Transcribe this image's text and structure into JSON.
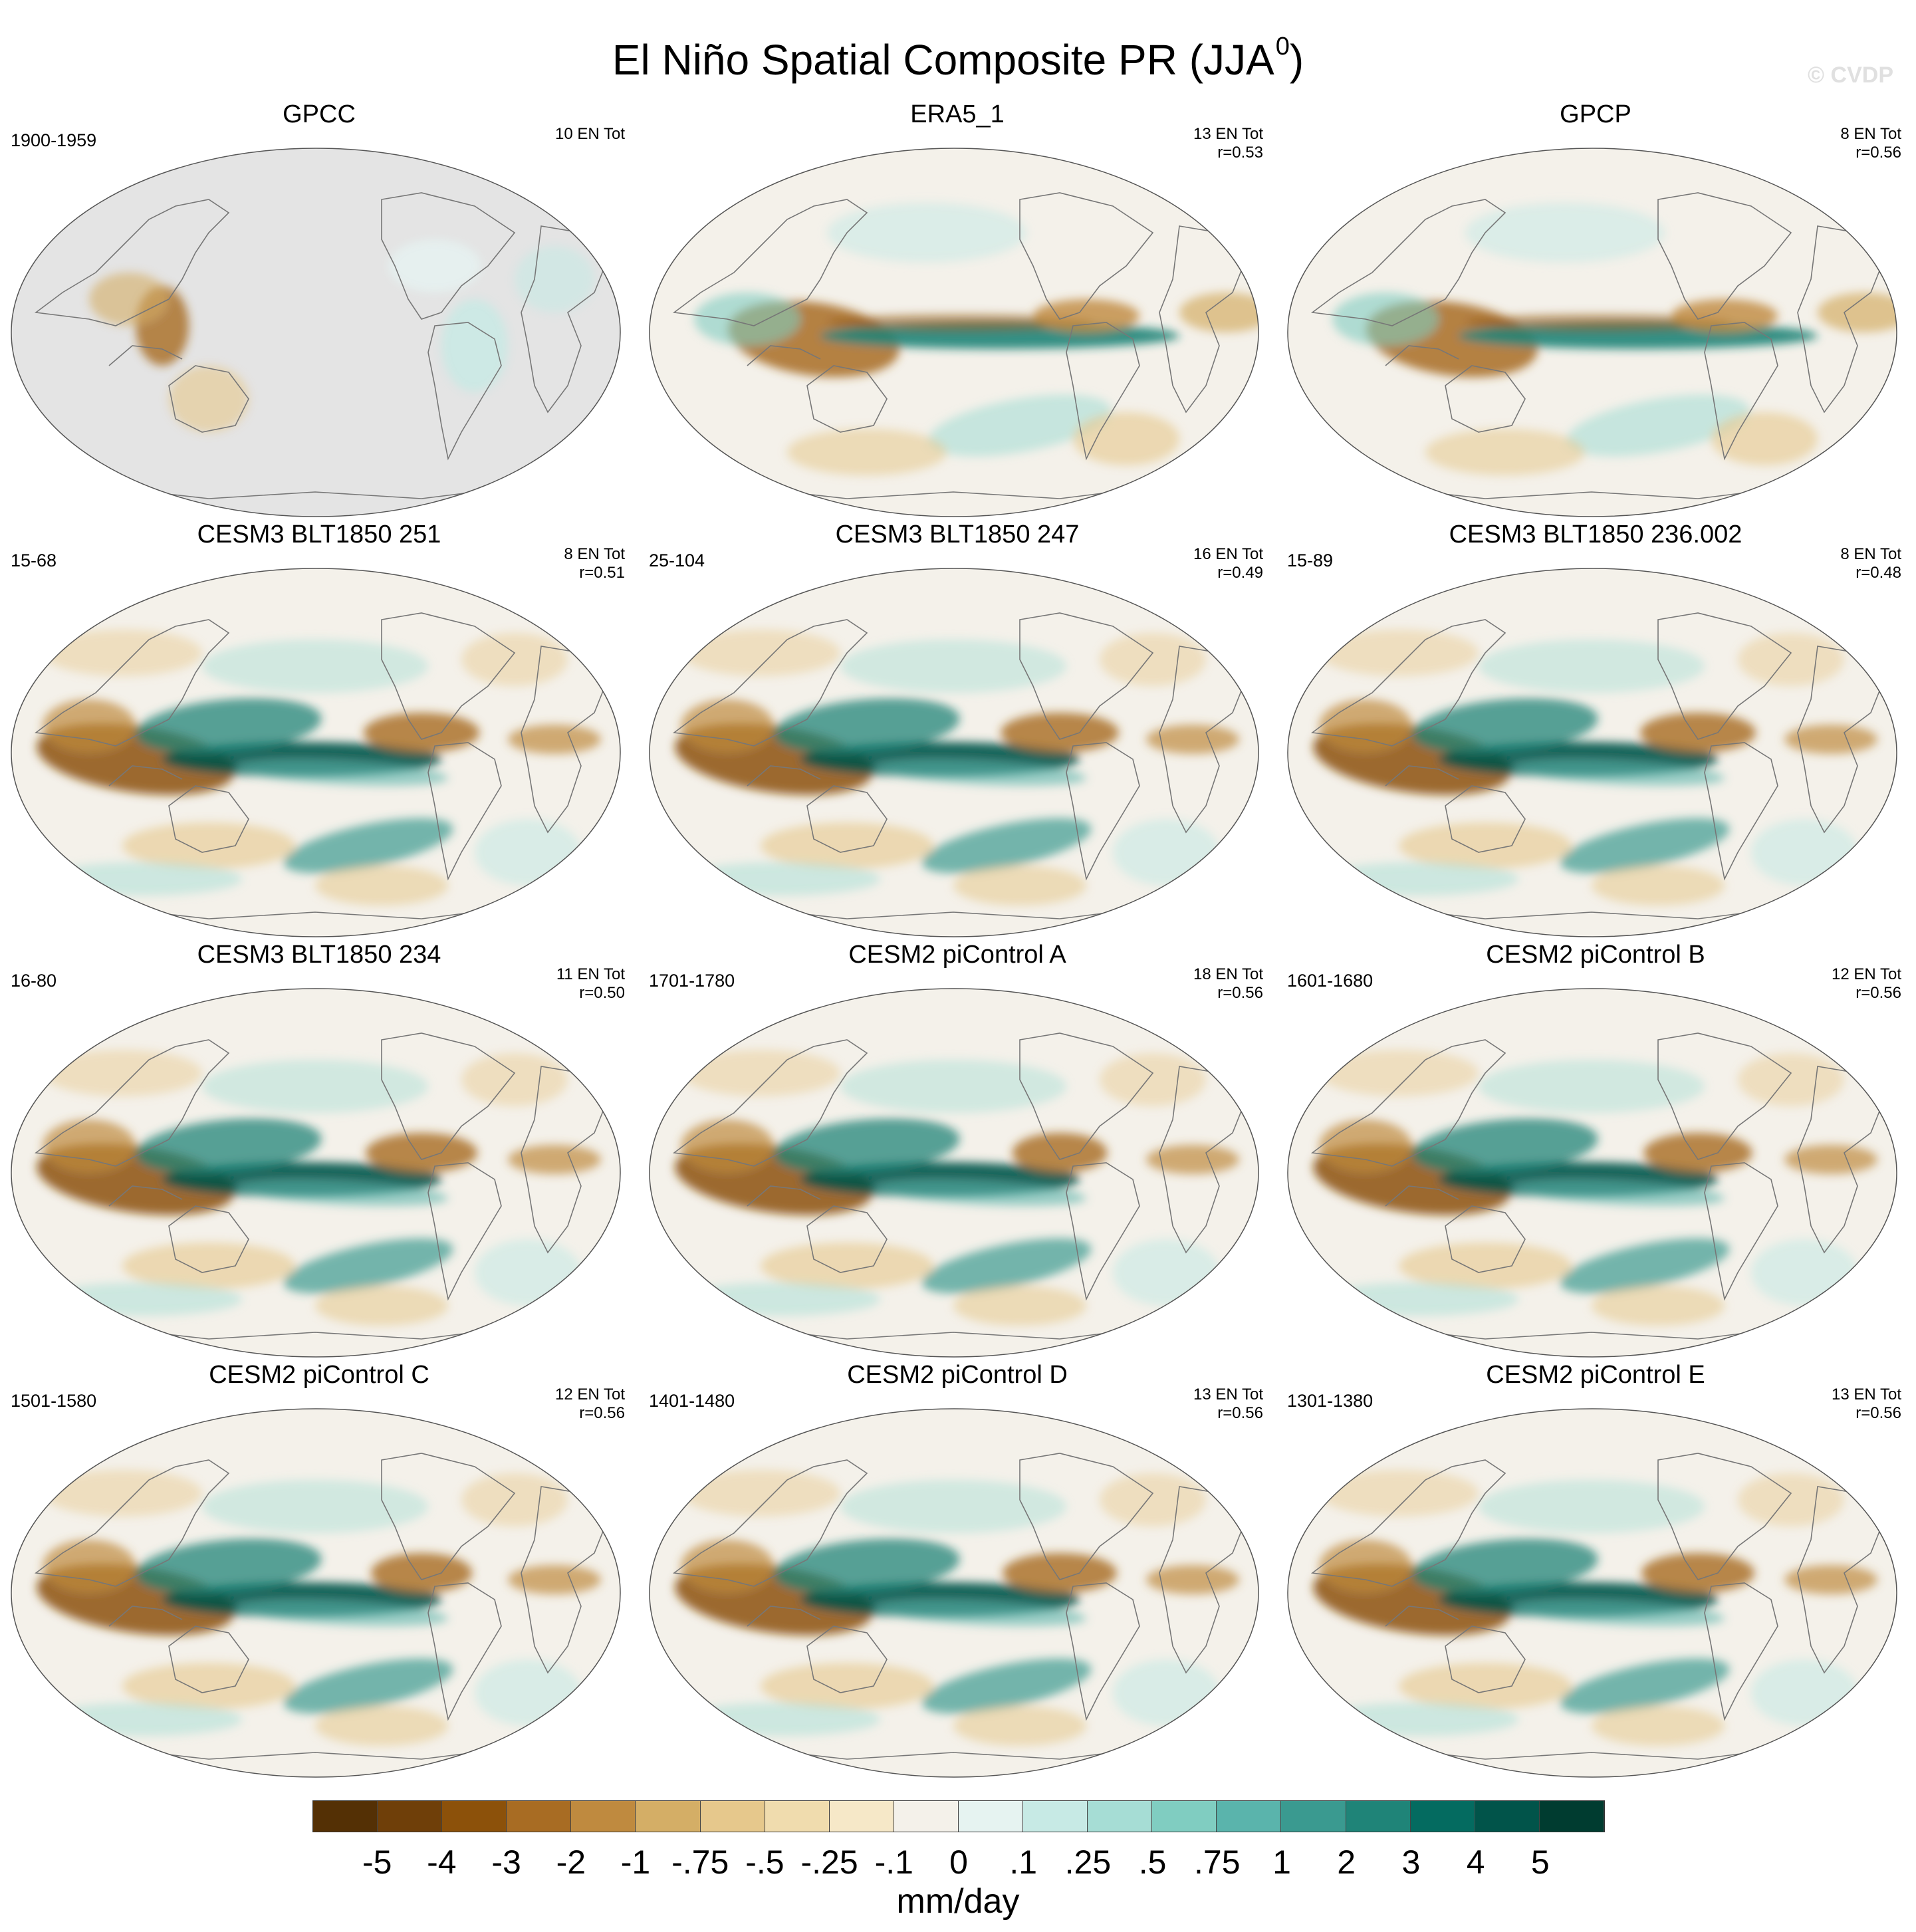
{
  "title": "El Niño Spatial Composite PR (JJA",
  "title_sup": "0",
  "title_close": ")",
  "watermark": "© CVDP",
  "panels": [
    {
      "title": "GPCC",
      "years": "1900-1959",
      "count": "10 EN Tot",
      "r": "",
      "style": "gpcc"
    },
    {
      "title": "ERA5_1",
      "years": "",
      "count": "13 EN Tot",
      "r": "r=0.53",
      "style": "obs"
    },
    {
      "title": "GPCP",
      "years": "",
      "count": "8 EN Tot",
      "r": "r=0.56",
      "style": "obs"
    },
    {
      "title": "CESM3 BLT1850 251",
      "years": "15-68",
      "count": "8 EN Tot",
      "r": "r=0.51",
      "style": "model"
    },
    {
      "title": "CESM3 BLT1850 247",
      "years": "25-104",
      "count": "16 EN Tot",
      "r": "r=0.49",
      "style": "model"
    },
    {
      "title": "CESM3 BLT1850 236.002",
      "years": "15-89",
      "count": "8 EN Tot",
      "r": "r=0.48",
      "style": "model"
    },
    {
      "title": "CESM3 BLT1850 234",
      "years": "16-80",
      "count": "11 EN Tot",
      "r": "r=0.50",
      "style": "model"
    },
    {
      "title": "CESM2 piControl A",
      "years": "1701-1780",
      "count": "18 EN Tot",
      "r": "r=0.56",
      "style": "model"
    },
    {
      "title": "CESM2 piControl B",
      "years": "1601-1680",
      "count": "12 EN Tot",
      "r": "r=0.56",
      "style": "model"
    },
    {
      "title": "CESM2 piControl C",
      "years": "1501-1580",
      "count": "12 EN Tot",
      "r": "r=0.56",
      "style": "model"
    },
    {
      "title": "CESM2 piControl D",
      "years": "1401-1480",
      "count": "13 EN Tot",
      "r": "r=0.56",
      "style": "model"
    },
    {
      "title": "CESM2 piControl E",
      "years": "1301-1380",
      "count": "13 EN Tot",
      "r": "r=0.56",
      "style": "model"
    }
  ],
  "colorbar": {
    "colors": [
      "#543005",
      "#6f3f09",
      "#8c510a",
      "#a86c23",
      "#bf8a3f",
      "#d4ae66",
      "#e6c88c",
      "#f0dcae",
      "#f6e8c8",
      "#f4f1ea",
      "#e6f3f1",
      "#c7eae5",
      "#a6ddd5",
      "#80cdc1",
      "#5ab4ac",
      "#3a9a90",
      "#1f8478",
      "#046b60",
      "#01544a",
      "#003c30"
    ],
    "labels": [
      "-5",
      "-4",
      "-3",
      "-2",
      "-1",
      "-.75",
      "-.5",
      "-.25",
      "-.1",
      "0",
      ".1",
      ".25",
      ".5",
      ".75",
      "1",
      "2",
      "3",
      "4",
      "5"
    ],
    "units": "mm/day"
  }
}
